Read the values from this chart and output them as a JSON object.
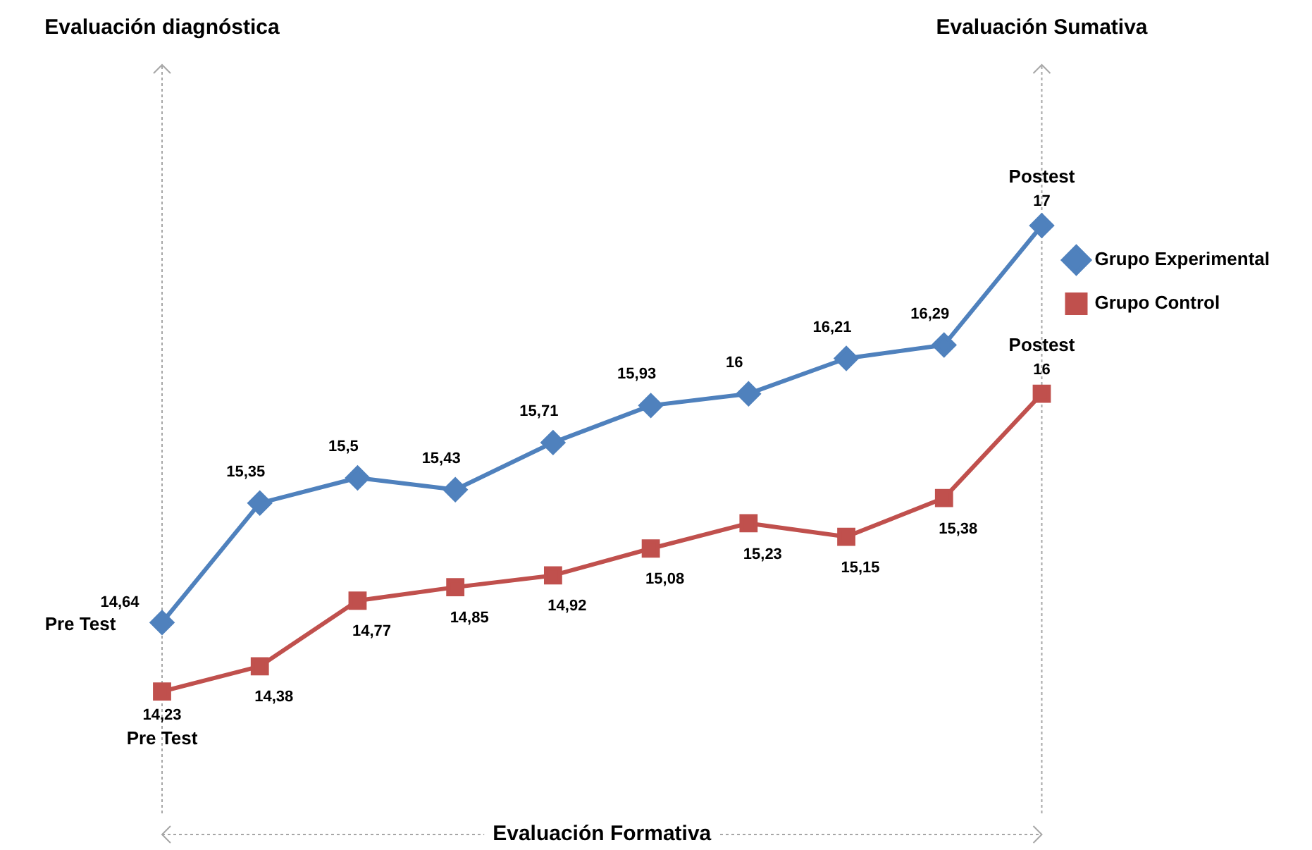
{
  "chart_data": {
    "type": "line",
    "categories": [
      null,
      null,
      null,
      null,
      null,
      null,
      null,
      null,
      null,
      null
    ],
    "series": [
      {
        "name": "Grupo Experimental",
        "color": "#4f81bd",
        "marker": "diamond",
        "values": [
          14.64,
          15.35,
          15.5,
          15.43,
          15.71,
          15.93,
          16,
          16.21,
          16.29,
          17
        ],
        "value_labels": [
          "14,64",
          "15,35",
          "15,5",
          "15,43",
          "15,71",
          "15,93",
          "16",
          "16,21",
          "16,29",
          "17"
        ]
      },
      {
        "name": "Grupo Control",
        "color": "#c0504d",
        "marker": "square",
        "values": [
          14.23,
          14.38,
          14.77,
          14.85,
          14.92,
          15.08,
          15.23,
          15.15,
          15.38,
          16
        ],
        "value_labels": [
          "14,23",
          "14,38",
          "14,77",
          "14,85",
          "14,92",
          "15,08",
          "15,23",
          "15,15",
          "15,38",
          "16"
        ]
      }
    ],
    "annotations": [
      "Evaluación diagnóstica",
      "Evaluación Sumativa",
      "Evaluación Formativa",
      "Pre Test",
      "Postest",
      "Pre Test",
      "Postest"
    ],
    "legend": "right",
    "line_style": "solid"
  }
}
